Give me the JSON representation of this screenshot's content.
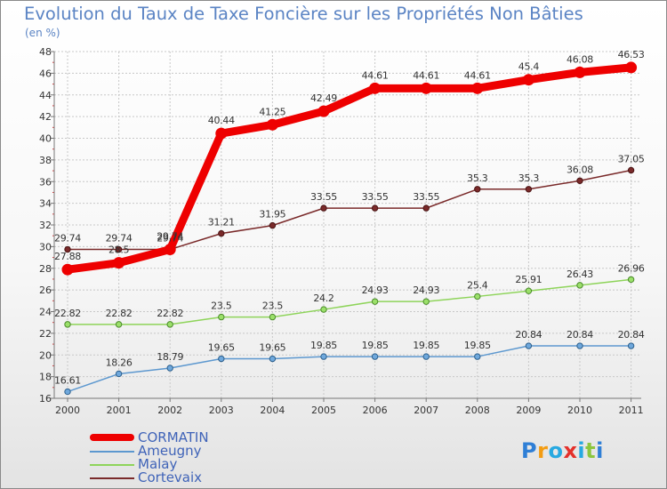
{
  "title": "Evolution du Taux de Taxe Foncière sur les Propriétés Non Bâties",
  "unit": "(en %)",
  "logo": {
    "text": "Proxiti",
    "colors": [
      "#2f7fd6",
      "#f39c12",
      "#27a9e1",
      "#e4312b",
      "#27a9e1",
      "#8cc63f",
      "#2f7fd6"
    ]
  },
  "chart_data": {
    "type": "line",
    "title": "Evolution du Taux de Taxe Foncière sur les Propriétés Non Bâties",
    "ylabel": "(en %)",
    "xlabel": "",
    "ylim": [
      16,
      48
    ],
    "yticks": [
      16,
      18,
      20,
      22,
      24,
      26,
      28,
      30,
      32,
      34,
      36,
      38,
      40,
      42,
      44,
      46,
      48
    ],
    "grid": true,
    "legend_position": "bottom-left",
    "x": [
      "2000",
      "2001",
      "2002",
      "2003",
      "2004",
      "2005",
      "2006",
      "2007",
      "2008",
      "2009",
      "2010",
      "2011"
    ],
    "series": [
      {
        "name": "CORMATIN",
        "color": "#ee0000",
        "values": [
          27.88,
          28.5,
          29.74,
          40.44,
          41.25,
          42.49,
          44.61,
          44.61,
          44.61,
          45.4,
          46.08,
          46.53
        ],
        "labels": [
          "27.88",
          "28.5",
          "29.74",
          "40.44",
          "41.25",
          "42.49",
          "44.61",
          "44.61",
          "44.61",
          "45.4",
          "46.08",
          "46.53"
        ]
      },
      {
        "name": "Ameugny",
        "color": "#5d98cf",
        "values": [
          16.61,
          18.26,
          18.79,
          19.65,
          19.65,
          19.85,
          19.85,
          19.85,
          19.85,
          20.84,
          20.84,
          20.84
        ],
        "labels": [
          "16.61",
          "18.26",
          "18.79",
          "19.65",
          "19.65",
          "19.85",
          "19.85",
          "19.85",
          "19.85",
          "20.84",
          "20.84",
          "20.84"
        ]
      },
      {
        "name": "Malay",
        "color": "#8ed45a",
        "values": [
          22.82,
          22.82,
          22.82,
          23.5,
          23.5,
          24.2,
          24.93,
          24.93,
          25.4,
          25.91,
          26.43,
          26.96
        ],
        "labels": [
          "22.82",
          "22.82",
          "22.82",
          "23.5",
          "23.5",
          "24.2",
          "24.93",
          "24.93",
          "25.4",
          "25.91",
          "26.43",
          "26.96"
        ]
      },
      {
        "name": "Cortevaix",
        "color": "#7a2a2a",
        "values": [
          29.74,
          29.74,
          29.74,
          31.21,
          31.95,
          33.55,
          33.55,
          33.55,
          35.3,
          35.3,
          36.08,
          37.05
        ],
        "labels": [
          "29.74",
          "29.74",
          "29.74",
          "31.21",
          "31.95",
          "33.55",
          "33.55",
          "33.55",
          "35.3",
          "35.3",
          "36.08",
          "37.05"
        ]
      }
    ]
  }
}
